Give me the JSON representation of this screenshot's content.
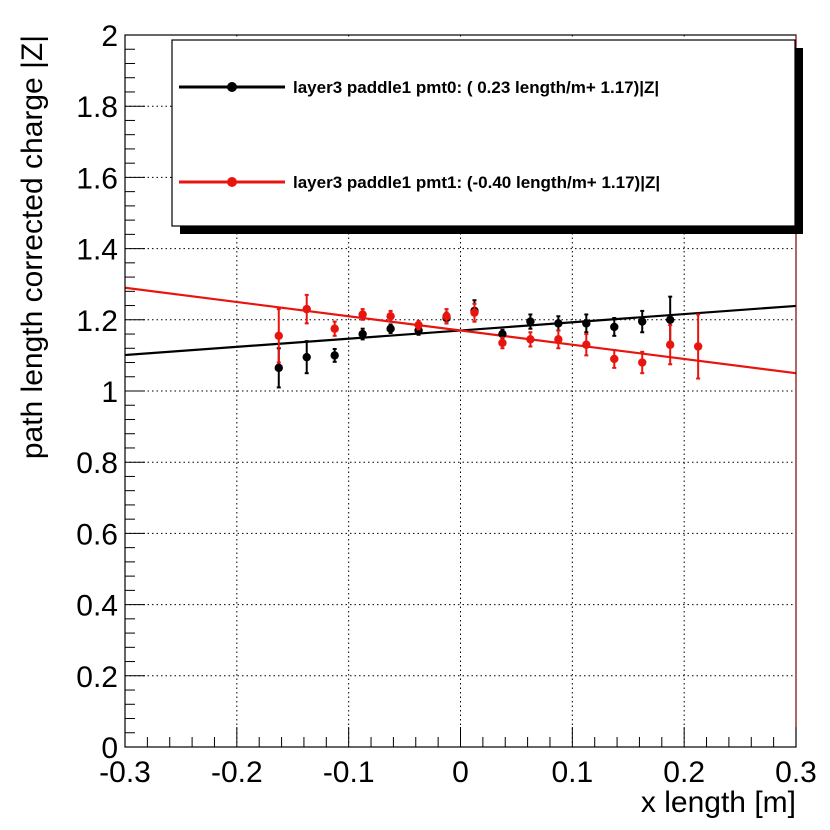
{
  "chart_data": {
    "type": "scatter",
    "title": "",
    "xlabel": "x length [m]",
    "ylabel": "path length corrected charge |Z|",
    "xlim": [
      -0.3,
      0.3
    ],
    "ylim": [
      0,
      2
    ],
    "xticks": [
      -0.3,
      -0.2,
      -0.1,
      0,
      0.1,
      0.2,
      0.3
    ],
    "xtick_labels": [
      "-0.3",
      "-0.2",
      "-0.1",
      "0",
      "0.1",
      "0.2",
      "0.3"
    ],
    "yticks": [
      0,
      0.2,
      0.4,
      0.6,
      0.8,
      1,
      1.2,
      1.4,
      1.6,
      1.8,
      2
    ],
    "ytick_labels": [
      "0",
      "0.2",
      "0.4",
      "0.6",
      "0.8",
      "1",
      "1.2",
      "1.4",
      "1.6",
      "1.8",
      "2"
    ],
    "grid": true,
    "legend_position": "top-right",
    "series": [
      {
        "name": "layer3 paddle1 pmt0: ( 0.23 length/m+ 1.17)|Z|",
        "color": "#000000",
        "fit": {
          "slope": 0.23,
          "intercept": 1.17
        },
        "points": [
          {
            "x": -0.1625,
            "y": 1.065,
            "err": 0.055
          },
          {
            "x": -0.1375,
            "y": 1.095,
            "err": 0.045
          },
          {
            "x": -0.1125,
            "y": 1.1,
            "err": 0.018
          },
          {
            "x": -0.0875,
            "y": 1.16,
            "err": 0.015
          },
          {
            "x": -0.0625,
            "y": 1.175,
            "err": 0.012
          },
          {
            "x": -0.0375,
            "y": 1.17,
            "err": 0.012
          },
          {
            "x": -0.0125,
            "y": 1.205,
            "err": 0.015
          },
          {
            "x": 0.0125,
            "y": 1.225,
            "err": 0.03
          },
          {
            "x": 0.0375,
            "y": 1.16,
            "err": 0.012
          },
          {
            "x": 0.0625,
            "y": 1.195,
            "err": 0.02
          },
          {
            "x": 0.0875,
            "y": 1.19,
            "err": 0.02
          },
          {
            "x": 0.1125,
            "y": 1.19,
            "err": 0.025
          },
          {
            "x": 0.1375,
            "y": 1.18,
            "err": 0.025
          },
          {
            "x": 0.1625,
            "y": 1.195,
            "err": 0.03
          },
          {
            "x": 0.1875,
            "y": 1.2,
            "err": 0.065
          }
        ]
      },
      {
        "name": "layer3 paddle1 pmt1: (-0.40 length/m+ 1.17)|Z|",
        "color": "#e8140e",
        "fit": {
          "slope": -0.4,
          "intercept": 1.17
        },
        "points": [
          {
            "x": -0.1625,
            "y": 1.155,
            "err": 0.075
          },
          {
            "x": -0.1375,
            "y": 1.23,
            "err": 0.04
          },
          {
            "x": -0.1125,
            "y": 1.175,
            "err": 0.02
          },
          {
            "x": -0.0875,
            "y": 1.215,
            "err": 0.015
          },
          {
            "x": -0.0625,
            "y": 1.21,
            "err": 0.015
          },
          {
            "x": -0.0375,
            "y": 1.185,
            "err": 0.012
          },
          {
            "x": -0.0125,
            "y": 1.21,
            "err": 0.02
          },
          {
            "x": 0.0125,
            "y": 1.22,
            "err": 0.025
          },
          {
            "x": 0.0375,
            "y": 1.135,
            "err": 0.015
          },
          {
            "x": 0.0625,
            "y": 1.145,
            "err": 0.02
          },
          {
            "x": 0.0875,
            "y": 1.145,
            "err": 0.025
          },
          {
            "x": 0.1125,
            "y": 1.13,
            "err": 0.03
          },
          {
            "x": 0.1375,
            "y": 1.09,
            "err": 0.025
          },
          {
            "x": 0.1625,
            "y": 1.08,
            "err": 0.03
          },
          {
            "x": 0.1875,
            "y": 1.13,
            "err": 0.055
          },
          {
            "x": 0.2125,
            "y": 1.125,
            "err": 0.09
          }
        ]
      }
    ]
  }
}
